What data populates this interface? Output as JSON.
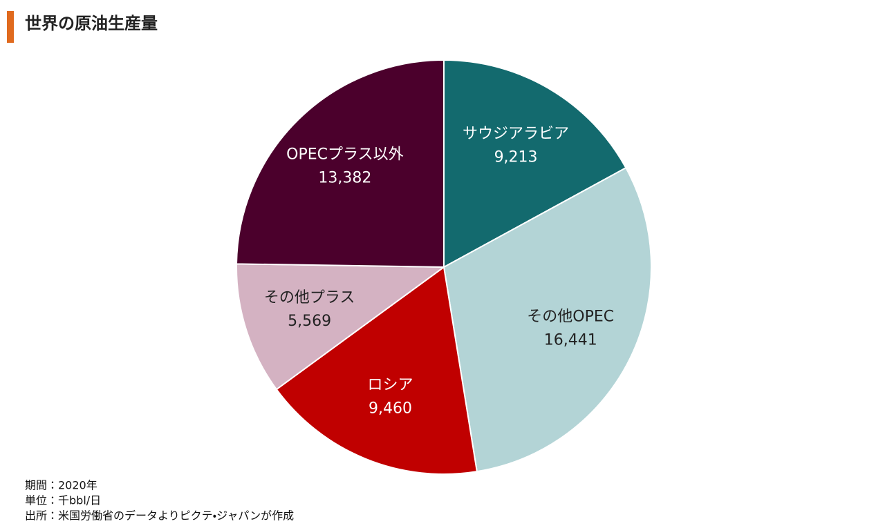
{
  "chart_data": {
    "type": "pie",
    "title": "世界の原油生産量",
    "categories": [
      "サウジアラビア",
      "その他OPEC",
      "ロシア",
      "その他プラス",
      "OPECプラス以外"
    ],
    "values": [
      9213,
      16441,
      9460,
      5569,
      13382
    ],
    "value_labels": [
      "9,213",
      "16,441",
      "9,460",
      "5,569",
      "13,382"
    ],
    "colors": [
      "#136a6e",
      "#b3d4d6",
      "#c00000",
      "#d4b2c2",
      "#4b002c"
    ],
    "notes": [
      "期間：2020年",
      "単位：千bbl/日",
      "出所：米国労働省のデータよりピクテ・ジャパンが作成"
    ]
  }
}
